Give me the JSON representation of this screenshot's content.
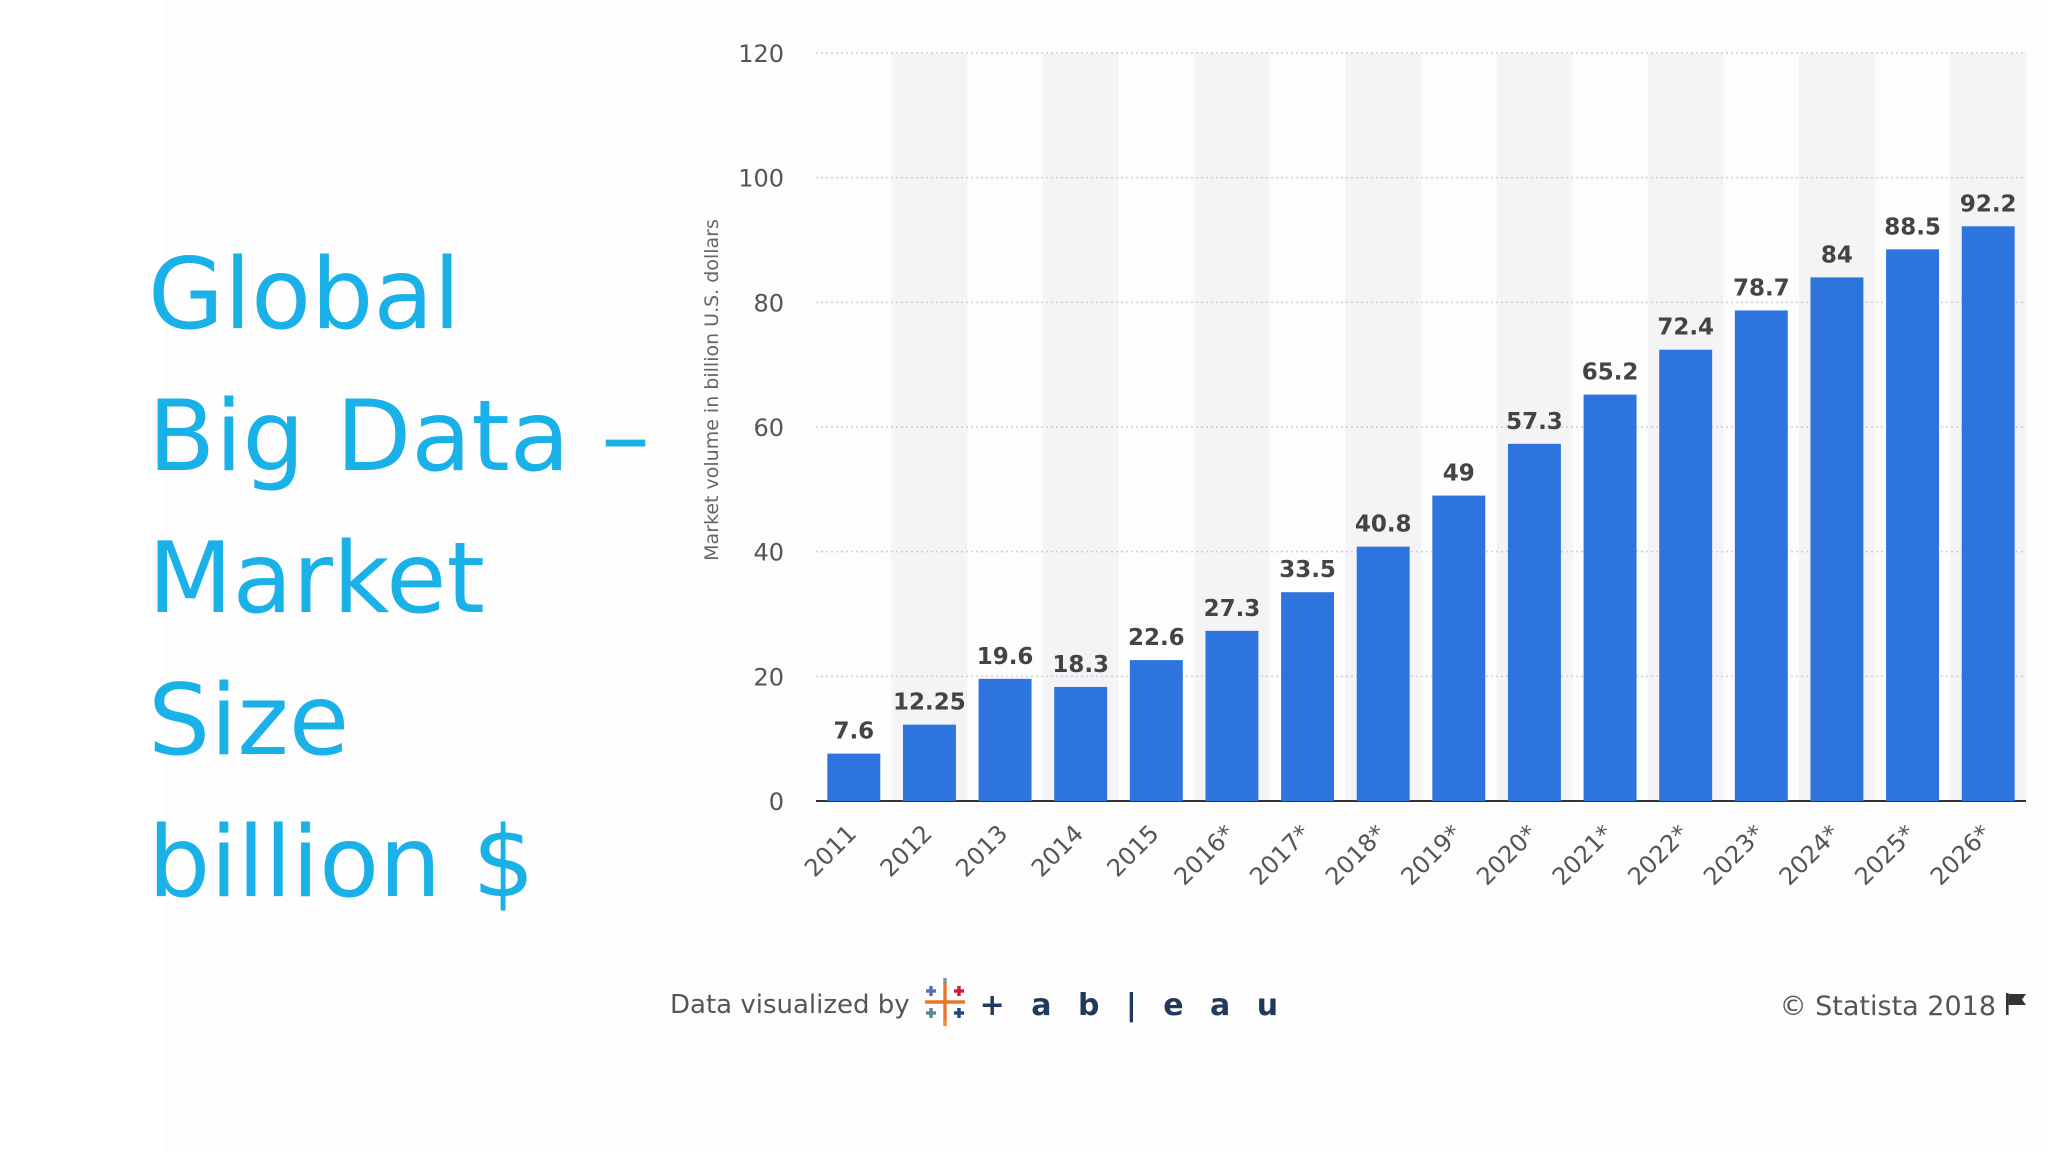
{
  "slide": {
    "title_lines": [
      "Global",
      "Big Data –",
      "Market",
      "Size",
      "billion $"
    ]
  },
  "footer": {
    "data_visualized_by": "Data visualized by",
    "tableau_wordmark": "+ a b | e a u",
    "copyright": "© Statista 2018",
    "flag_icon": "flag-icon",
    "tableau_logo_icon": "tableau-cross-logo-icon"
  },
  "colors": {
    "title": "#1ab0e8",
    "bar": "#2e74de",
    "band": "#f4f4f6",
    "grid": "#cfcfcf"
  },
  "chart_data": {
    "type": "bar",
    "title": "",
    "xlabel": "",
    "ylabel": "Market volume in billion U.S. dollars",
    "ylim": [
      0,
      120
    ],
    "yticks": [
      0,
      20,
      40,
      60,
      80,
      100,
      120
    ],
    "grid": true,
    "alternating_bands": true,
    "categories": [
      "2011",
      "2012",
      "2013",
      "2014",
      "2015",
      "2016*",
      "2017*",
      "2018*",
      "2019*",
      "2020*",
      "2021*",
      "2022*",
      "2023*",
      "2024*",
      "2025*",
      "2026*"
    ],
    "values": [
      7.6,
      12.25,
      19.6,
      18.3,
      22.6,
      27.3,
      33.5,
      40.8,
      49,
      57.3,
      65.2,
      72.4,
      78.7,
      84,
      88.5,
      92.2
    ],
    "value_labels": [
      "7.6",
      "12.25",
      "19.6",
      "18.3",
      "22.6",
      "27.3",
      "33.5",
      "40.8",
      "49",
      "57.3",
      "65.2",
      "72.4",
      "78.7",
      "84",
      "88.5",
      "92.2"
    ]
  }
}
